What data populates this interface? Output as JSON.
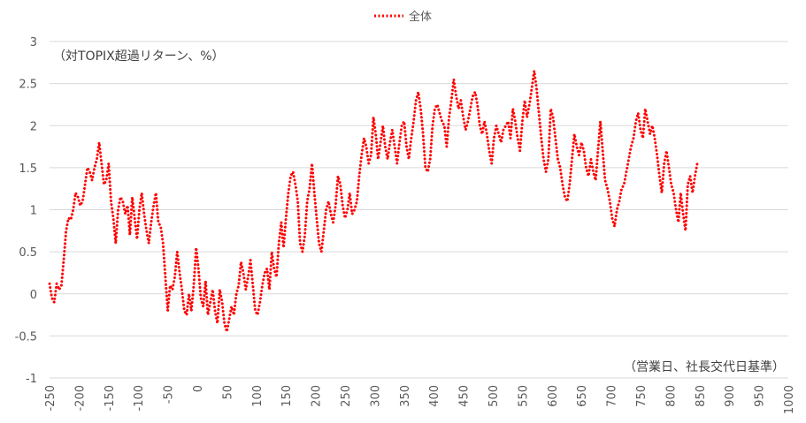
{
  "chart_data": {
    "type": "line",
    "legend": {
      "position": "top",
      "entries": [
        "全体"
      ]
    },
    "annotations": {
      "y_unit_note": "（対TOPIX超過リターン、%）",
      "x_unit_note": "（営業日、社長交代日基準）"
    },
    "grid": {
      "horizontal": true,
      "vertical": false
    },
    "xlim": [
      -250,
      1000
    ],
    "ylim": [
      -1,
      3
    ],
    "x_ticks": [
      -250,
      -200,
      -150,
      -100,
      -50,
      0,
      50,
      100,
      150,
      200,
      250,
      300,
      350,
      400,
      450,
      500,
      550,
      600,
      650,
      700,
      750,
      800,
      850,
      900,
      950,
      1000
    ],
    "y_ticks": [
      -1,
      -0.5,
      0,
      0.5,
      1,
      1.5,
      2,
      2.5,
      3
    ],
    "series": [
      {
        "name": "全体",
        "color": "#ff0000",
        "style": "dotted",
        "points": [
          [
            -250,
            0.12
          ],
          [
            -246,
            -0.05
          ],
          [
            -242,
            -0.1
          ],
          [
            -238,
            0.12
          ],
          [
            -234,
            0.05
          ],
          [
            -230,
            0.1
          ],
          [
            -226,
            0.4
          ],
          [
            -222,
            0.75
          ],
          [
            -218,
            0.9
          ],
          [
            -214,
            0.88
          ],
          [
            -210,
            1.0
          ],
          [
            -206,
            1.2
          ],
          [
            -202,
            1.15
          ],
          [
            -198,
            1.05
          ],
          [
            -194,
            1.1
          ],
          [
            -190,
            1.3
          ],
          [
            -186,
            1.5
          ],
          [
            -182,
            1.45
          ],
          [
            -178,
            1.35
          ],
          [
            -174,
            1.5
          ],
          [
            -170,
            1.6
          ],
          [
            -166,
            1.8
          ],
          [
            -162,
            1.55
          ],
          [
            -158,
            1.3
          ],
          [
            -154,
            1.35
          ],
          [
            -150,
            1.55
          ],
          [
            -146,
            1.1
          ],
          [
            -142,
            0.9
          ],
          [
            -138,
            0.6
          ],
          [
            -134,
            1.0
          ],
          [
            -130,
            1.15
          ],
          [
            -126,
            1.1
          ],
          [
            -122,
            0.95
          ],
          [
            -118,
            1.05
          ],
          [
            -114,
            0.7
          ],
          [
            -110,
            1.15
          ],
          [
            -106,
            0.9
          ],
          [
            -102,
            0.65
          ],
          [
            -98,
            1.0
          ],
          [
            -94,
            1.2
          ],
          [
            -90,
            0.95
          ],
          [
            -86,
            0.75
          ],
          [
            -82,
            0.6
          ],
          [
            -78,
            0.85
          ],
          [
            -74,
            1.05
          ],
          [
            -70,
            1.2
          ],
          [
            -66,
            0.85
          ],
          [
            -62,
            0.8
          ],
          [
            -58,
            0.6
          ],
          [
            -54,
            0.2
          ],
          [
            -50,
            -0.2
          ],
          [
            -46,
            0.1
          ],
          [
            -42,
            0.05
          ],
          [
            -38,
            0.2
          ],
          [
            -34,
            0.5
          ],
          [
            -30,
            0.25
          ],
          [
            -26,
            0.05
          ],
          [
            -22,
            -0.2
          ],
          [
            -18,
            -0.25
          ],
          [
            -14,
            0.0
          ],
          [
            -10,
            -0.2
          ],
          [
            -6,
            0.1
          ],
          [
            -2,
            0.55
          ],
          [
            2,
            0.3
          ],
          [
            6,
            -0.05
          ],
          [
            10,
            -0.15
          ],
          [
            14,
            0.15
          ],
          [
            18,
            -0.25
          ],
          [
            22,
            -0.1
          ],
          [
            26,
            0.05
          ],
          [
            30,
            -0.2
          ],
          [
            34,
            -0.35
          ],
          [
            38,
            0.05
          ],
          [
            42,
            -0.1
          ],
          [
            46,
            -0.35
          ],
          [
            50,
            -0.45
          ],
          [
            54,
            -0.3
          ],
          [
            58,
            -0.15
          ],
          [
            62,
            -0.25
          ],
          [
            66,
            0.0
          ],
          [
            70,
            0.1
          ],
          [
            74,
            0.38
          ],
          [
            78,
            0.25
          ],
          [
            82,
            0.05
          ],
          [
            86,
            0.2
          ],
          [
            90,
            0.4
          ],
          [
            94,
            0.1
          ],
          [
            98,
            -0.2
          ],
          [
            102,
            -0.25
          ],
          [
            106,
            -0.1
          ],
          [
            110,
            0.1
          ],
          [
            114,
            0.25
          ],
          [
            118,
            0.3
          ],
          [
            122,
            0.05
          ],
          [
            126,
            0.5
          ],
          [
            130,
            0.3
          ],
          [
            134,
            0.2
          ],
          [
            138,
            0.6
          ],
          [
            142,
            0.85
          ],
          [
            146,
            0.55
          ],
          [
            150,
            0.9
          ],
          [
            154,
            1.2
          ],
          [
            158,
            1.4
          ],
          [
            162,
            1.45
          ],
          [
            166,
            1.3
          ],
          [
            170,
            1.1
          ],
          [
            174,
            0.6
          ],
          [
            178,
            0.5
          ],
          [
            182,
            0.7
          ],
          [
            186,
            1.1
          ],
          [
            190,
            1.25
          ],
          [
            194,
            1.55
          ],
          [
            198,
            1.2
          ],
          [
            202,
            0.9
          ],
          [
            206,
            0.6
          ],
          [
            210,
            0.5
          ],
          [
            214,
            0.75
          ],
          [
            218,
            1.0
          ],
          [
            222,
            1.1
          ],
          [
            226,
            0.95
          ],
          [
            230,
            0.85
          ],
          [
            234,
            1.05
          ],
          [
            238,
            1.4
          ],
          [
            242,
            1.3
          ],
          [
            246,
            1.05
          ],
          [
            250,
            0.9
          ],
          [
            254,
            1.0
          ],
          [
            258,
            1.2
          ],
          [
            262,
            0.95
          ],
          [
            266,
            1.0
          ],
          [
            270,
            1.1
          ],
          [
            274,
            1.4
          ],
          [
            278,
            1.65
          ],
          [
            282,
            1.85
          ],
          [
            286,
            1.75
          ],
          [
            290,
            1.55
          ],
          [
            294,
            1.65
          ],
          [
            298,
            2.1
          ],
          [
            302,
            1.9
          ],
          [
            306,
            1.6
          ],
          [
            310,
            1.8
          ],
          [
            314,
            2.0
          ],
          [
            318,
            1.75
          ],
          [
            322,
            1.6
          ],
          [
            326,
            1.8
          ],
          [
            330,
            1.95
          ],
          [
            334,
            1.75
          ],
          [
            338,
            1.55
          ],
          [
            342,
            1.8
          ],
          [
            346,
            2.0
          ],
          [
            350,
            2.05
          ],
          [
            354,
            1.75
          ],
          [
            358,
            1.6
          ],
          [
            362,
            1.85
          ],
          [
            366,
            2.05
          ],
          [
            370,
            2.3
          ],
          [
            374,
            2.4
          ],
          [
            378,
            2.2
          ],
          [
            382,
            1.9
          ],
          [
            386,
            1.5
          ],
          [
            390,
            1.45
          ],
          [
            394,
            1.6
          ],
          [
            398,
            2.0
          ],
          [
            402,
            2.2
          ],
          [
            406,
            2.25
          ],
          [
            410,
            2.15
          ],
          [
            414,
            2.05
          ],
          [
            418,
            2.0
          ],
          [
            422,
            1.75
          ],
          [
            426,
            2.1
          ],
          [
            430,
            2.3
          ],
          [
            434,
            2.55
          ],
          [
            438,
            2.35
          ],
          [
            442,
            2.2
          ],
          [
            446,
            2.3
          ],
          [
            450,
            2.1
          ],
          [
            454,
            1.95
          ],
          [
            458,
            2.05
          ],
          [
            462,
            2.2
          ],
          [
            466,
            2.35
          ],
          [
            470,
            2.4
          ],
          [
            474,
            2.25
          ],
          [
            478,
            2.0
          ],
          [
            482,
            1.9
          ],
          [
            486,
            2.05
          ],
          [
            490,
            1.9
          ],
          [
            494,
            1.7
          ],
          [
            498,
            1.55
          ],
          [
            502,
            1.85
          ],
          [
            506,
            2.0
          ],
          [
            510,
            1.9
          ],
          [
            514,
            1.8
          ],
          [
            518,
            1.95
          ],
          [
            522,
            2.0
          ],
          [
            526,
            2.05
          ],
          [
            530,
            1.85
          ],
          [
            534,
            2.2
          ],
          [
            538,
            2.05
          ],
          [
            542,
            1.85
          ],
          [
            546,
            1.7
          ],
          [
            550,
            2.05
          ],
          [
            554,
            2.3
          ],
          [
            558,
            2.1
          ],
          [
            562,
            2.25
          ],
          [
            566,
            2.45
          ],
          [
            570,
            2.65
          ],
          [
            574,
            2.45
          ],
          [
            578,
            2.15
          ],
          [
            582,
            1.85
          ],
          [
            586,
            1.6
          ],
          [
            590,
            1.45
          ],
          [
            594,
            1.6
          ],
          [
            598,
            2.2
          ],
          [
            602,
            2.1
          ],
          [
            606,
            1.85
          ],
          [
            610,
            1.6
          ],
          [
            614,
            1.5
          ],
          [
            618,
            1.3
          ],
          [
            622,
            1.15
          ],
          [
            626,
            1.1
          ],
          [
            630,
            1.3
          ],
          [
            634,
            1.6
          ],
          [
            638,
            1.9
          ],
          [
            642,
            1.75
          ],
          [
            646,
            1.65
          ],
          [
            650,
            1.8
          ],
          [
            654,
            1.7
          ],
          [
            658,
            1.5
          ],
          [
            662,
            1.4
          ],
          [
            666,
            1.6
          ],
          [
            670,
            1.45
          ],
          [
            674,
            1.35
          ],
          [
            678,
            1.7
          ],
          [
            682,
            2.05
          ],
          [
            686,
            1.7
          ],
          [
            690,
            1.35
          ],
          [
            694,
            1.25
          ],
          [
            698,
            1.1
          ],
          [
            702,
            0.9
          ],
          [
            706,
            0.8
          ],
          [
            710,
            1.0
          ],
          [
            714,
            1.1
          ],
          [
            718,
            1.25
          ],
          [
            722,
            1.3
          ],
          [
            726,
            1.45
          ],
          [
            730,
            1.6
          ],
          [
            734,
            1.75
          ],
          [
            738,
            1.85
          ],
          [
            742,
            2.05
          ],
          [
            746,
            2.15
          ],
          [
            750,
            1.95
          ],
          [
            754,
            1.85
          ],
          [
            758,
            2.2
          ],
          [
            762,
            2.05
          ],
          [
            766,
            1.9
          ],
          [
            770,
            2.0
          ],
          [
            774,
            1.85
          ],
          [
            778,
            1.65
          ],
          [
            782,
            1.4
          ],
          [
            786,
            1.2
          ],
          [
            790,
            1.55
          ],
          [
            794,
            1.7
          ],
          [
            798,
            1.5
          ],
          [
            802,
            1.3
          ],
          [
            806,
            1.2
          ],
          [
            810,
            1.0
          ],
          [
            814,
            0.85
          ],
          [
            818,
            1.2
          ],
          [
            822,
            0.95
          ],
          [
            826,
            0.75
          ],
          [
            830,
            1.3
          ],
          [
            834,
            1.4
          ],
          [
            838,
            1.2
          ],
          [
            842,
            1.4
          ],
          [
            846,
            1.55
          ]
        ]
      }
    ]
  }
}
